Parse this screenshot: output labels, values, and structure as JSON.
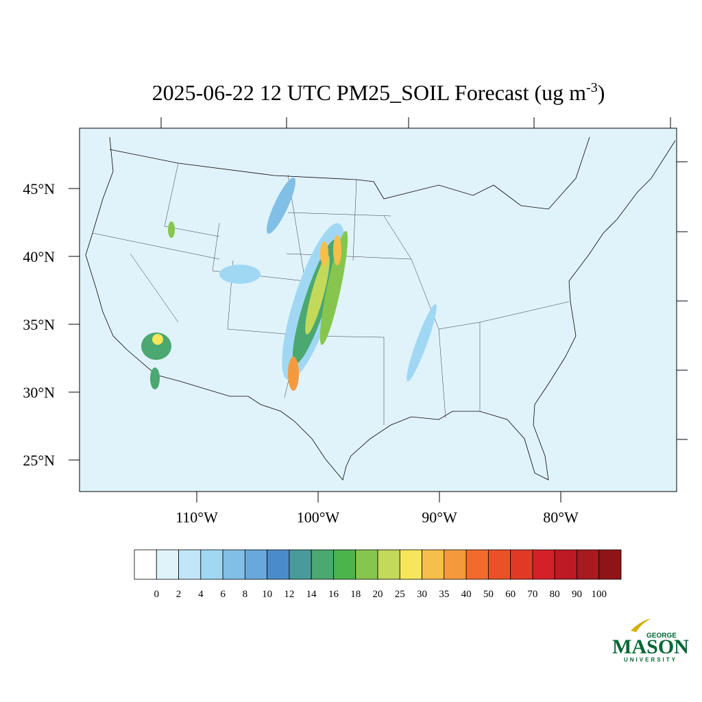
{
  "title": {
    "main": "2025-06-22 12 UTC PM25_SOIL Forecast (ug m",
    "superscript": "-3",
    "end": ")"
  },
  "lat_labels": [
    "45°N",
    "40°N",
    "35°N",
    "30°N",
    "25°N"
  ],
  "lon_labels": [
    "110°W",
    "100°W",
    "90°W",
    "80°W"
  ],
  "colorbar": {
    "labels": [
      "0",
      "2",
      "4",
      "6",
      "8",
      "10",
      "12",
      "14",
      "16",
      "18",
      "20",
      "25",
      "30",
      "35",
      "40",
      "50",
      "60",
      "70",
      "80",
      "90",
      "100"
    ],
    "colors": [
      "#ffffff",
      "#e0f3fb",
      "#c0e6f7",
      "#a0d8f4",
      "#82bfe6",
      "#68a8dc",
      "#4a8ccb",
      "#4a9a9c",
      "#4aa870",
      "#4bb44b",
      "#86c64e",
      "#c2d95a",
      "#f7e65a",
      "#f7be4a",
      "#f59a3c",
      "#f26b2c",
      "#ec5028",
      "#e03a26",
      "#d42028",
      "#be1a24",
      "#a61a20",
      "#8f1418"
    ]
  },
  "logo": {
    "top": "GEORGE",
    "name": "MASON",
    "bottom": "UNIVERSITY"
  }
}
